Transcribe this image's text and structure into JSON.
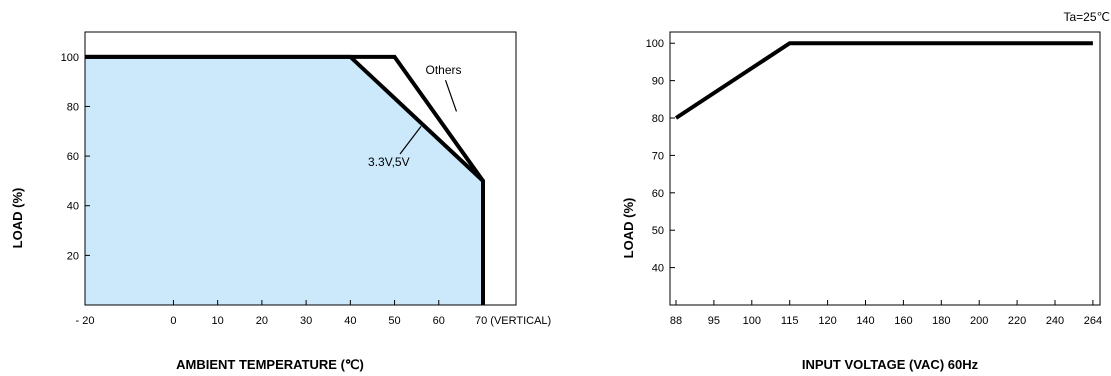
{
  "chart_data": [
    {
      "type": "line",
      "xlabel": "AMBIENT TEMPERATURE (℃)",
      "ylabel": "LOAD (%)",
      "x_ticks": [
        "- 20",
        "0",
        "10",
        "20",
        "30",
        "40",
        "50",
        "60",
        "70 (VERTICAL)"
      ],
      "x_tick_values": [
        -20,
        0,
        10,
        20,
        30,
        40,
        50,
        60,
        70
      ],
      "y_ticks": [
        "20",
        "40",
        "60",
        "80",
        "100"
      ],
      "y_tick_values": [
        20,
        40,
        60,
        80,
        100
      ],
      "xlim": [
        -20,
        75
      ],
      "ylim": [
        0,
        110
      ],
      "grid": false,
      "colors": {
        "fill": "#cce9fb",
        "line": "#000000"
      },
      "series": [
        {
          "name": "Others",
          "x": [
            -20,
            50,
            70,
            70
          ],
          "y": [
            100,
            100,
            50,
            0
          ]
        },
        {
          "name": "3.3V,5V",
          "x": [
            -20,
            40,
            70,
            70
          ],
          "y": [
            100,
            100,
            50,
            0
          ]
        }
      ],
      "annotations": [
        {
          "text": "Others",
          "x": 57,
          "y": 93,
          "target": [
            64,
            78
          ]
        },
        {
          "text": "3.3V,5V",
          "x": 44,
          "y": 56,
          "target": [
            56,
            72
          ]
        }
      ]
    },
    {
      "type": "line",
      "xlabel": "INPUT VOLTAGE (VAC) 60Hz",
      "ylabel": "LOAD (%)",
      "corner_note": "Ta=25℃",
      "x_ticks": [
        "88",
        "95",
        "100",
        "115",
        "120",
        "140",
        "160",
        "180",
        "200",
        "220",
        "240",
        "264"
      ],
      "y_ticks": [
        "40",
        "50",
        "60",
        "70",
        "80",
        "90",
        "100"
      ],
      "y_tick_values": [
        40,
        50,
        60,
        70,
        80,
        90,
        100
      ],
      "ylim": [
        30,
        103
      ],
      "grid": false,
      "colors": {
        "line": "#000000"
      },
      "series": [
        {
          "x_index": [
            0,
            3,
            11
          ],
          "y": [
            80,
            100,
            100
          ]
        }
      ]
    }
  ]
}
